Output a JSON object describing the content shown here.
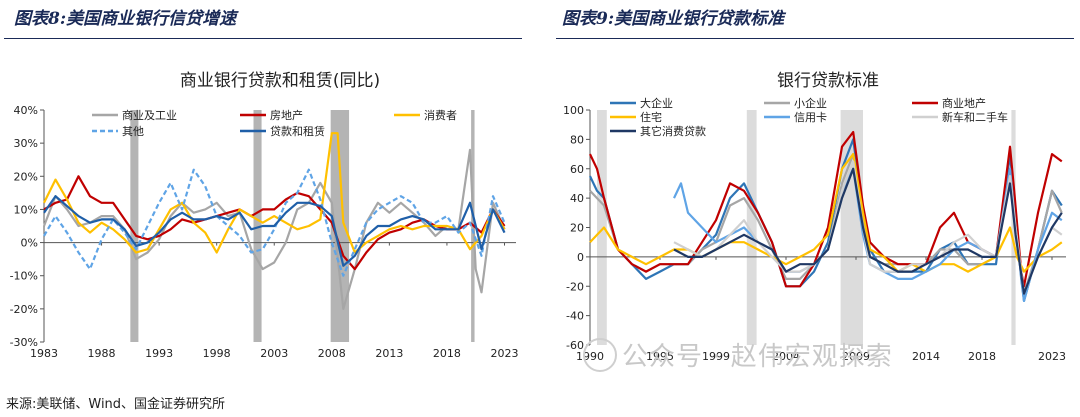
{
  "figures": {
    "left_header": "图表8:美国商业银行信贷增速",
    "right_header": "图表9:美国商业银行贷款标准"
  },
  "source": "来源:美联储、Wind、国金证券研究所",
  "watermark": "公众号 · 赵伟宏观探索",
  "chart_data": [
    {
      "type": "line",
      "title": "商业银行贷款和租赁(同比)",
      "y_unit": "percent",
      "ylim": [
        -30,
        40
      ],
      "yticks": [
        "-30%",
        "-20%",
        "-10%",
        "0%",
        "10%",
        "20%",
        "30%",
        "40%"
      ],
      "xlim": [
        1983,
        2024
      ],
      "xticks": [
        "1983",
        "1988",
        "1993",
        "1998",
        "2003",
        "2008",
        "2013",
        "2018",
        "2023"
      ],
      "recessions": [
        [
          1990.5,
          1991.2
        ],
        [
          2001.2,
          2001.9
        ],
        [
          2007.9,
          2009.5
        ],
        [
          2020.1,
          2020.4
        ]
      ],
      "legend": [
        "商业及工业",
        "房地产",
        "消费者",
        "其他",
        "贷款和租赁"
      ],
      "series": [
        {
          "name": "商业及工业",
          "color": "#a6a6a6",
          "style": "solid",
          "x": [
            1983,
            1984,
            1985,
            1986,
            1987,
            1988,
            1989,
            1990,
            1991,
            1992,
            1993,
            1994,
            1995,
            1996,
            1997,
            1998,
            1999,
            2000,
            2001,
            2002,
            2003,
            2004,
            2005,
            2006,
            2007,
            2008,
            2009,
            2010,
            2011,
            2012,
            2013,
            2014,
            2015,
            2016,
            2017,
            2018,
            2019,
            2020,
            2020.5,
            2021,
            2022,
            2023
          ],
          "y": [
            5,
            14,
            10,
            5,
            6,
            8,
            8,
            4,
            -5,
            -3,
            1,
            8,
            12,
            9,
            10,
            12,
            8,
            9,
            -2,
            -8,
            -6,
            0,
            10,
            12,
            18,
            12,
            -20,
            -8,
            6,
            12,
            9,
            12,
            9,
            6,
            2,
            5,
            4,
            28,
            -8,
            -15,
            12,
            4
          ]
        },
        {
          "name": "房地产",
          "color": "#c00000",
          "style": "solid",
          "x": [
            1983,
            1984,
            1985,
            1986,
            1987,
            1988,
            1989,
            1990,
            1991,
            1992,
            1993,
            1994,
            1995,
            1996,
            1997,
            1998,
            1999,
            2000,
            2001,
            2002,
            2003,
            2004,
            2005,
            2006,
            2007,
            2008,
            2009,
            2010,
            2011,
            2012,
            2013,
            2014,
            2015,
            2016,
            2017,
            2018,
            2019,
            2020,
            2021,
            2022,
            2023
          ],
          "y": [
            10,
            12,
            13,
            20,
            14,
            12,
            12,
            7,
            2,
            1,
            2,
            4,
            7,
            6,
            7,
            8,
            9,
            10,
            8,
            10,
            10,
            13,
            15,
            14,
            10,
            6,
            -4,
            -8,
            -3,
            1,
            3,
            4,
            6,
            7,
            5,
            4,
            4,
            6,
            3,
            10,
            5
          ]
        },
        {
          "name": "消费者",
          "color": "#ffc000",
          "style": "solid",
          "x": [
            1983,
            1984,
            1985,
            1986,
            1987,
            1988,
            1989,
            1990,
            1991,
            1992,
            1993,
            1994,
            1995,
            1996,
            1997,
            1998,
            1999,
            2000,
            2001,
            2002,
            2003,
            2004,
            2005,
            2006,
            2007,
            2008,
            2008.5,
            2009,
            2010,
            2011,
            2012,
            2013,
            2014,
            2015,
            2016,
            2017,
            2018,
            2019,
            2020,
            2021,
            2022,
            2023
          ],
          "y": [
            12,
            19,
            13,
            6,
            3,
            6,
            4,
            1,
            -3,
            -2,
            4,
            10,
            12,
            6,
            3,
            -3,
            4,
            10,
            8,
            6,
            8,
            6,
            4,
            5,
            7,
            33,
            33,
            6,
            -3,
            0,
            2,
            4,
            5,
            4,
            5,
            5,
            5,
            4,
            -2,
            2,
            10,
            4
          ]
        },
        {
          "name": "其他",
          "color": "#5fa4e6",
          "style": "dashed",
          "x": [
            1983,
            1984,
            1985,
            1986,
            1987,
            1988,
            1989,
            1990,
            1991,
            1992,
            1993,
            1994,
            1995,
            1996,
            1997,
            1998,
            1999,
            2000,
            2001,
            2002,
            2003,
            2004,
            2005,
            2006,
            2007,
            2008,
            2009,
            2010,
            2011,
            2012,
            2013,
            2014,
            2015,
            2016,
            2017,
            2018,
            2019,
            2020,
            2021,
            2022,
            2023
          ],
          "y": [
            2,
            8,
            3,
            -3,
            -8,
            1,
            7,
            3,
            -2,
            5,
            12,
            18,
            10,
            22,
            17,
            8,
            5,
            2,
            -3,
            -2,
            4,
            12,
            15,
            22,
            13,
            0,
            -10,
            -2,
            6,
            10,
            12,
            14,
            12,
            6,
            6,
            8,
            3,
            6,
            -4,
            14,
            6
          ]
        },
        {
          "name": "贷款和租赁",
          "color": "#1f5fa8",
          "style": "solid",
          "x": [
            1983,
            1984,
            1985,
            1986,
            1987,
            1988,
            1989,
            1990,
            1991,
            1992,
            1993,
            1994,
            1995,
            1996,
            1997,
            1998,
            1999,
            2000,
            2001,
            2002,
            2003,
            2004,
            2005,
            2006,
            2007,
            2008,
            2009,
            2010,
            2011,
            2012,
            2013,
            2014,
            2015,
            2016,
            2017,
            2018,
            2019,
            2020,
            2021,
            2022,
            2023
          ],
          "y": [
            9,
            14,
            11,
            8,
            6,
            7,
            7,
            4,
            -1,
            0,
            3,
            7,
            9,
            7,
            7,
            8,
            7,
            9,
            4,
            5,
            5,
            9,
            12,
            12,
            11,
            8,
            -7,
            -4,
            2,
            5,
            5,
            7,
            8,
            7,
            4,
            4,
            4,
            12,
            -2,
            10,
            3
          ]
        }
      ]
    },
    {
      "type": "line",
      "title": "银行贷款标准",
      "ylim": [
        -60,
        100
      ],
      "yticks": [
        "-60",
        "-40",
        "-20",
        "0",
        "20",
        "40",
        "60",
        "80",
        "100"
      ],
      "xlim": [
        1990,
        2024
      ],
      "xticks": [
        "1990",
        "1995",
        "1999",
        "2004",
        "2009",
        "2014",
        "2018",
        "2023"
      ],
      "recessions": [
        [
          1990.5,
          1991.2
        ],
        [
          2001.2,
          2001.9
        ],
        [
          2007.9,
          2009.5
        ],
        [
          2020.1,
          2020.4
        ]
      ],
      "legend": [
        "大企业",
        "小企业",
        "商业地产",
        "住宅",
        "信用卡",
        "新车和二手车",
        "其它消费贷款"
      ],
      "series": [
        {
          "name": "大企业",
          "color": "#2e75b6",
          "style": "solid",
          "x": [
            1990,
            1990.5,
            1991,
            1992,
            1993,
            1994,
            1995,
            1996,
            1997,
            1998,
            1999,
            2000,
            2001,
            2002,
            2003,
            2004,
            2005,
            2006,
            2007,
            2008,
            2008.8,
            2009.5,
            2010,
            2011,
            2012,
            2013,
            2014,
            2015,
            2016,
            2017,
            2018,
            2019,
            2020,
            2020.3,
            2020.8,
            2021,
            2022,
            2023,
            2023.7
          ],
          "y": [
            55,
            45,
            40,
            5,
            -5,
            -15,
            -10,
            -5,
            -5,
            5,
            15,
            40,
            50,
            30,
            10,
            -20,
            -20,
            -10,
            10,
            60,
            80,
            30,
            5,
            -10,
            -10,
            -10,
            -10,
            5,
            10,
            -5,
            -5,
            -5,
            70,
            40,
            -15,
            -30,
            5,
            45,
            35
          ]
        },
        {
          "name": "小企业",
          "color": "#a6a6a6",
          "style": "solid",
          "x": [
            1990,
            1990.5,
            1991,
            1992,
            1993,
            1994,
            1995,
            1996,
            1997,
            1998,
            1999,
            2000,
            2001,
            2002,
            2003,
            2004,
            2005,
            2006,
            2007,
            2008,
            2008.8,
            2009.5,
            2010,
            2011,
            2012,
            2013,
            2014,
            2015,
            2016,
            2017,
            2018,
            2019,
            2020,
            2020.3,
            2020.8,
            2021,
            2022,
            2023,
            2023.7
          ],
          "y": [
            45,
            40,
            35,
            5,
            -5,
            -10,
            -5,
            -5,
            -5,
            5,
            10,
            35,
            40,
            25,
            5,
            -15,
            -15,
            -5,
            5,
            50,
            70,
            25,
            0,
            -5,
            -5,
            -5,
            -5,
            5,
            5,
            -5,
            -5,
            0,
            60,
            35,
            -10,
            -25,
            5,
            45,
            30
          ]
        },
        {
          "name": "商业地产",
          "color": "#c00000",
          "style": "solid",
          "x": [
            1990,
            1990.5,
            1991,
            1992,
            1993,
            1994,
            1995,
            1996,
            1997,
            1998,
            1999,
            2000,
            2001,
            2002,
            2003,
            2004,
            2005,
            2006,
            2007,
            2008,
            2008.8,
            2009.5,
            2010,
            2011,
            2012,
            2013,
            2014,
            2015,
            2016,
            2017,
            2018,
            2019,
            2020,
            2020.3,
            2020.8,
            2021,
            2022,
            2023,
            2023.7
          ],
          "y": [
            70,
            60,
            40,
            5,
            -5,
            -10,
            -5,
            -5,
            -5,
            10,
            25,
            50,
            45,
            30,
            10,
            -20,
            -20,
            -5,
            20,
            75,
            85,
            35,
            10,
            0,
            -5,
            -5,
            -5,
            20,
            30,
            10,
            5,
            0,
            75,
            45,
            -10,
            -20,
            30,
            70,
            65
          ]
        },
        {
          "name": "住宅",
          "color": "#ffc000",
          "style": "solid",
          "x": [
            1990,
            1991,
            1992,
            1993,
            1994,
            1995,
            1996,
            1997,
            1998,
            1999,
            2000,
            2001,
            2002,
            2003,
            2004,
            2005,
            2006,
            2007,
            2008,
            2008.8,
            2009.5,
            2010,
            2011,
            2012,
            2013,
            2014,
            2015,
            2016,
            2017,
            2018,
            2019,
            2020,
            2020.5,
            2021,
            2022,
            2023,
            2023.7
          ],
          "y": [
            10,
            20,
            5,
            0,
            -5,
            0,
            5,
            5,
            0,
            5,
            10,
            10,
            5,
            0,
            -5,
            0,
            5,
            15,
            60,
            70,
            30,
            5,
            0,
            -10,
            -5,
            -10,
            -5,
            -5,
            -10,
            -5,
            0,
            20,
            0,
            -10,
            0,
            5,
            10
          ]
        },
        {
          "name": "信用卡",
          "color": "#5fa4e6",
          "style": "solid",
          "x": [
            1996,
            1996.5,
            1997,
            1998,
            1999,
            2000,
            2001,
            2002,
            2003,
            2004,
            2005,
            2006,
            2007,
            2008,
            2008.8,
            2009.5,
            2010,
            2011,
            2012,
            2013,
            2014,
            2015,
            2016,
            2017,
            2018,
            2019,
            2020,
            2020.4,
            2021,
            2022,
            2023,
            2023.7
          ],
          "y": [
            40,
            50,
            30,
            20,
            10,
            15,
            20,
            10,
            5,
            -10,
            -10,
            -5,
            5,
            45,
            60,
            15,
            -5,
            -10,
            -15,
            -15,
            -10,
            -5,
            5,
            10,
            5,
            0,
            60,
            20,
            -30,
            5,
            30,
            25
          ]
        },
        {
          "name": "新车和二手车",
          "color": "#d0d0d0",
          "style": "solid",
          "x": [
            1996,
            1997,
            1998,
            1999,
            2000,
            2001,
            2002,
            2003,
            2004,
            2005,
            2006,
            2007,
            2008,
            2008.8,
            2009.5,
            2010,
            2011,
            2012,
            2013,
            2014,
            2015,
            2016,
            2017,
            2018,
            2019,
            2020,
            2020.4,
            2021,
            2022,
            2023,
            2023.7
          ],
          "y": [
            10,
            5,
            0,
            5,
            15,
            25,
            10,
            0,
            -10,
            -10,
            -5,
            5,
            45,
            65,
            20,
            -5,
            -10,
            -10,
            -5,
            -5,
            0,
            10,
            15,
            5,
            0,
            55,
            20,
            -25,
            0,
            20,
            15
          ]
        },
        {
          "name": "其它消费贷款",
          "color": "#1f3864",
          "style": "solid",
          "x": [
            1996,
            1997,
            1998,
            1999,
            2000,
            2001,
            2002,
            2003,
            2004,
            2005,
            2006,
            2007,
            2008,
            2008.8,
            2009.5,
            2010,
            2011,
            2012,
            2013,
            2014,
            2015,
            2016,
            2017,
            2018,
            2019,
            2020,
            2020.4,
            2021,
            2022,
            2023,
            2023.7
          ],
          "y": [
            5,
            0,
            0,
            5,
            10,
            15,
            10,
            5,
            -10,
            -5,
            -5,
            5,
            40,
            60,
            20,
            0,
            -5,
            -10,
            -10,
            -5,
            0,
            5,
            5,
            0,
            0,
            50,
            15,
            -25,
            0,
            20,
            30
          ]
        }
      ]
    }
  ]
}
